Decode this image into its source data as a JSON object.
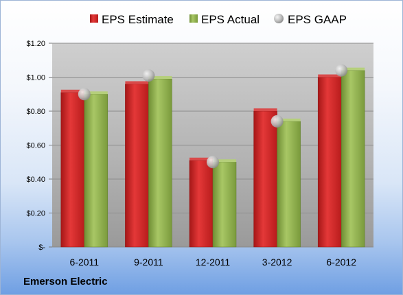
{
  "company": "Emerson Electric",
  "colors": {
    "estimate": "#c8201f",
    "actual": "#8aab4a",
    "gaap": "#b3b3b3"
  },
  "chart_data": {
    "type": "bar",
    "categories": [
      "6-2011",
      "9-2011",
      "12-2011",
      "3-2012",
      "6-2012"
    ],
    "series": [
      {
        "name": "EPS Estimate",
        "type": "bar",
        "values": [
          0.91,
          0.96,
          0.51,
          0.8,
          1.0
        ]
      },
      {
        "name": "EPS Actual",
        "type": "bar",
        "values": [
          0.9,
          0.99,
          0.5,
          0.74,
          1.04
        ]
      },
      {
        "name": "EPS GAAP",
        "type": "scatter",
        "values": [
          0.9,
          1.01,
          0.5,
          0.74,
          1.04
        ]
      }
    ],
    "ylim": [
      0,
      1.2
    ],
    "yticks": [
      0,
      0.2,
      0.4,
      0.6,
      0.8,
      1.0,
      1.2
    ],
    "ytick_labels": [
      "$-",
      "$0.20",
      "$0.40",
      "$0.60",
      "$0.80",
      "$1.00",
      "$1.20"
    ],
    "grid": true,
    "legend_position": "top"
  }
}
